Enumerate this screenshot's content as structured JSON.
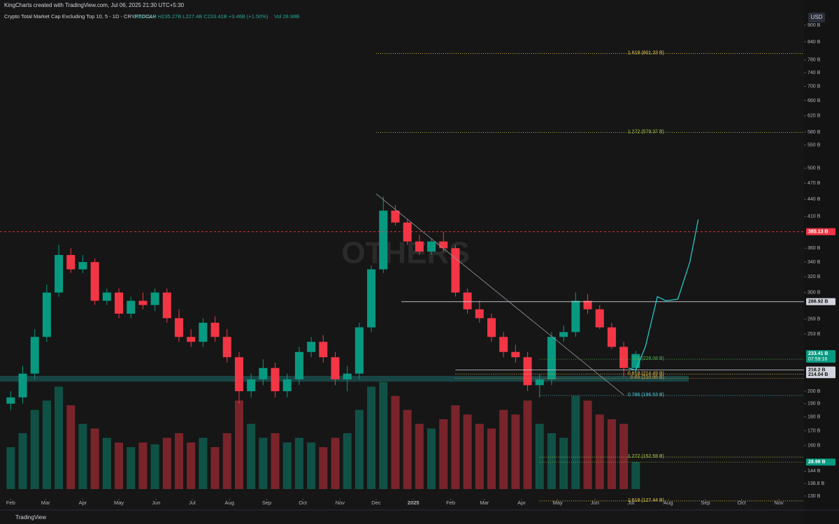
{
  "header": {
    "credit": "KingCharts created with TradingView.com, Jul 06, 2025 21:30 UTC+5:30",
    "symbol": "Crypto Total Market Cap Excluding Top 10, 5 - 1D - CRYPTOCAP",
    "ohlc": "O230.01B H235.27B L227.4B C233.41B +3.46B (+1.50%)",
    "volume": "Vol 28.98B",
    "currency": "USD",
    "watermark": "OTHERS",
    "footer": "TradingView"
  },
  "chart_data": {
    "type": "candlestick",
    "log": true,
    "x": [
      0,
      10,
      20,
      30,
      40,
      50,
      60,
      70,
      80,
      90,
      100,
      110,
      120,
      130,
      140,
      150,
      160,
      170,
      180,
      190,
      200,
      210,
      220,
      230,
      240,
      250,
      260,
      270,
      280,
      290,
      300,
      310,
      320,
      330,
      340,
      350,
      360,
      370,
      380,
      390,
      400,
      410,
      420,
      430,
      440,
      450,
      460,
      470,
      480,
      490,
      500,
      510,
      520
    ],
    "open": [
      190,
      195,
      215,
      250,
      300,
      350,
      330,
      340,
      290,
      300,
      275,
      290,
      285,
      300,
      270,
      250,
      245,
      265,
      250,
      230,
      200,
      210,
      220,
      200,
      210,
      235,
      245,
      230,
      210,
      215,
      260,
      330,
      420,
      400,
      370,
      355,
      370,
      360,
      300,
      280,
      270,
      250,
      235,
      230,
      205,
      210,
      250,
      255,
      290,
      280,
      260,
      240,
      220
    ],
    "high": [
      200,
      222,
      258,
      310,
      365,
      360,
      350,
      345,
      305,
      305,
      295,
      300,
      305,
      305,
      280,
      258,
      270,
      272,
      258,
      235,
      215,
      228,
      225,
      215,
      240,
      250,
      252,
      235,
      222,
      265,
      335,
      445,
      430,
      405,
      380,
      375,
      385,
      365,
      305,
      290,
      275,
      255,
      242,
      235,
      215,
      255,
      262,
      300,
      298,
      285,
      265,
      245,
      236
    ],
    "low": [
      185,
      190,
      210,
      245,
      295,
      325,
      325,
      285,
      285,
      270,
      270,
      280,
      278,
      265,
      245,
      240,
      240,
      245,
      225,
      190,
      195,
      205,
      195,
      195,
      205,
      230,
      225,
      205,
      200,
      210,
      255,
      325,
      395,
      365,
      350,
      350,
      355,
      295,
      275,
      265,
      245,
      230,
      225,
      200,
      195,
      205,
      245,
      250,
      275,
      258,
      238,
      212,
      215
    ],
    "close": [
      195,
      215,
      250,
      300,
      350,
      330,
      340,
      290,
      300,
      275,
      290,
      285,
      300,
      270,
      250,
      245,
      265,
      250,
      230,
      200,
      210,
      220,
      200,
      210,
      235,
      245,
      230,
      210,
      215,
      260,
      330,
      420,
      400,
      370,
      355,
      370,
      360,
      300,
      280,
      270,
      250,
      235,
      230,
      205,
      210,
      250,
      255,
      290,
      280,
      260,
      240,
      220,
      233
    ],
    "volume": [
      45,
      60,
      85,
      95,
      110,
      90,
      70,
      65,
      55,
      50,
      45,
      50,
      48,
      55,
      60,
      50,
      55,
      45,
      60,
      95,
      70,
      55,
      60,
      50,
      55,
      50,
      45,
      55,
      60,
      85,
      110,
      115,
      100,
      85,
      70,
      65,
      75,
      90,
      80,
      70,
      65,
      85,
      80,
      95,
      70,
      60,
      55,
      100,
      95,
      80,
      75,
      70,
      28.98
    ],
    "up_color": "#089981",
    "down_color": "#f23645",
    "xlim": [
      -6,
      660
    ],
    "ylim": [
      130,
      900
    ],
    "vol_ylim": [
      0,
      120
    ],
    "xticks": [
      {
        "value": 0,
        "label": "Feb"
      },
      {
        "value": 29,
        "label": "Mar"
      },
      {
        "value": 60,
        "label": "Apr"
      },
      {
        "value": 90,
        "label": "May"
      },
      {
        "value": 121,
        "label": "Jun"
      },
      {
        "value": 151,
        "label": "Jul"
      },
      {
        "value": 182,
        "label": "Aug"
      },
      {
        "value": 213,
        "label": "Sep"
      },
      {
        "value": 243,
        "label": "Oct"
      },
      {
        "value": 274,
        "label": "Nov"
      },
      {
        "value": 304,
        "label": "Dec"
      },
      {
        "value": 335,
        "label": "2025"
      },
      {
        "value": 366,
        "label": "Feb"
      },
      {
        "value": 394,
        "label": "Mar"
      },
      {
        "value": 425,
        "label": "Apr"
      },
      {
        "value": 455,
        "label": "May"
      },
      {
        "value": 486,
        "label": "Jun"
      },
      {
        "value": 516,
        "label": "Jul"
      },
      {
        "value": 547,
        "label": "Aug"
      },
      {
        "value": 578,
        "label": "Sep"
      },
      {
        "value": 608,
        "label": "Oct"
      },
      {
        "value": 639,
        "label": "Nov"
      }
    ],
    "yticks": [
      {
        "value": 900,
        "label": "900 B"
      },
      {
        "value": 840,
        "label": "840 B"
      },
      {
        "value": 780,
        "label": "780 B"
      },
      {
        "value": 740,
        "label": "740 B"
      },
      {
        "value": 700,
        "label": "700 B"
      },
      {
        "value": 660,
        "label": "660 B"
      },
      {
        "value": 620,
        "label": "620 B"
      },
      {
        "value": 580,
        "label": "580 B"
      },
      {
        "value": 550,
        "label": "550 B"
      },
      {
        "value": 500,
        "label": "500 B"
      },
      {
        "value": 470,
        "label": "470 B"
      },
      {
        "value": 440,
        "label": "440 B"
      },
      {
        "value": 410,
        "label": "410 B"
      },
      {
        "value": 360,
        "label": "360 B"
      },
      {
        "value": 340,
        "label": "340 B"
      },
      {
        "value": 320,
        "label": "320 B"
      },
      {
        "value": 300,
        "label": "300 B"
      },
      {
        "value": 269,
        "label": "269 B"
      },
      {
        "value": 253,
        "label": "253 B"
      },
      {
        "value": 200,
        "label": "200 B"
      },
      {
        "value": 190,
        "label": "190 B"
      },
      {
        "value": 180,
        "label": "180 B"
      },
      {
        "value": 170,
        "label": "170 B"
      },
      {
        "value": 160,
        "label": "160 B"
      },
      {
        "value": 144,
        "label": "144 B"
      },
      {
        "value": 136.8,
        "label": "136.8 B"
      },
      {
        "value": 130,
        "label": "130 B"
      }
    ],
    "fib_levels": [
      {
        "value": 801.33,
        "label": "1.618 (801.33 B)",
        "color": "#e6c84a",
        "start": 304
      },
      {
        "value": 579.37,
        "label": "1.272 (579.37 B)",
        "color": "#a8c94a",
        "start": 304
      },
      {
        "value": 228.08,
        "label": "0.5 (228.08 B)",
        "color": "#4caf50",
        "start": 440
      },
      {
        "value": 214.49,
        "label": "0.618 (214.49 B)",
        "color": "#e6c84a",
        "start": 370
      },
      {
        "value": 210.95,
        "label": "0.65 (210.95 B)",
        "color": "#e6a23a",
        "start": 370
      },
      {
        "value": 196.53,
        "label": "0.786 (196.53 B)",
        "color": "#4dd0e1",
        "start": 440
      },
      {
        "value": 152.59,
        "label": "1.272 (152.59 B)",
        "color": "#a8c94a",
        "start": 440
      },
      {
        "value": 127.44,
        "label": "1.618 (127.44 B)",
        "color": "#e6c84a",
        "start": 440
      }
    ],
    "price_tags": [
      {
        "value": 385.13,
        "label": "385.13 B",
        "color": "#f23645",
        "line": "dash"
      },
      {
        "value": 288.92,
        "label": "288.92 B",
        "color": "#d1d4dc",
        "line": "solid",
        "start": 325
      },
      {
        "value": 233.41,
        "label": "233.41 B",
        "sub": "07:59:16",
        "color": "#089981",
        "line": "none"
      },
      {
        "value": 218.2,
        "label": "218.2 B",
        "color": "#d1d4dc",
        "line": "solid",
        "start": 370
      },
      {
        "value": 214.04,
        "label": "214.04 B",
        "color": "#d1d4dc",
        "line": "none"
      }
    ],
    "volume_tag": {
      "value": 28.98,
      "label": "28.98 B",
      "color": "#089981"
    },
    "zone": [
      208,
      213
    ],
    "trendline": {
      "x": [
        304,
        510
      ],
      "y": [
        450,
        197
      ]
    },
    "projection": {
      "x": [
        514,
        520,
        528,
        538,
        545,
        555,
        565,
        572
      ],
      "y": [
        220,
        218,
        240,
        295,
        290,
        292,
        340,
        405
      ],
      "color": "#26c6c6"
    }
  }
}
